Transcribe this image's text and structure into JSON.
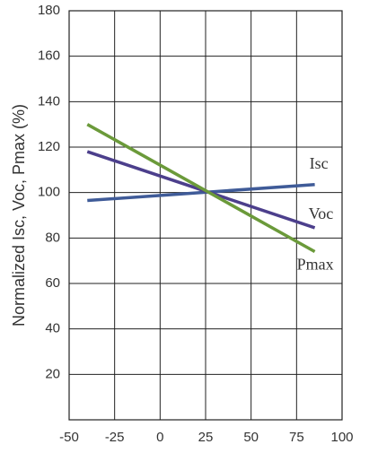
{
  "chart_data": {
    "type": "line",
    "y_label": "Normalized Isc, Voc, Pmax (%)",
    "xlim": [
      -50,
      100
    ],
    "xticks": [
      -50,
      -25,
      0,
      25,
      50,
      75,
      100
    ],
    "ylim": [
      0,
      180
    ],
    "yticks": [
      20,
      40,
      60,
      80,
      100,
      120,
      140,
      160,
      180
    ],
    "grid": true,
    "x": [
      -40,
      85
    ],
    "series": [
      {
        "name": "Isc",
        "color": "#3f5b98",
        "values": [
          96.5,
          103.5
        ]
      },
      {
        "name": "Voc",
        "color": "#4c3f8c",
        "values": [
          118,
          84.5
        ]
      },
      {
        "name": "Pmax",
        "color": "#6b9a3a",
        "values": [
          130,
          74
        ]
      }
    ]
  }
}
